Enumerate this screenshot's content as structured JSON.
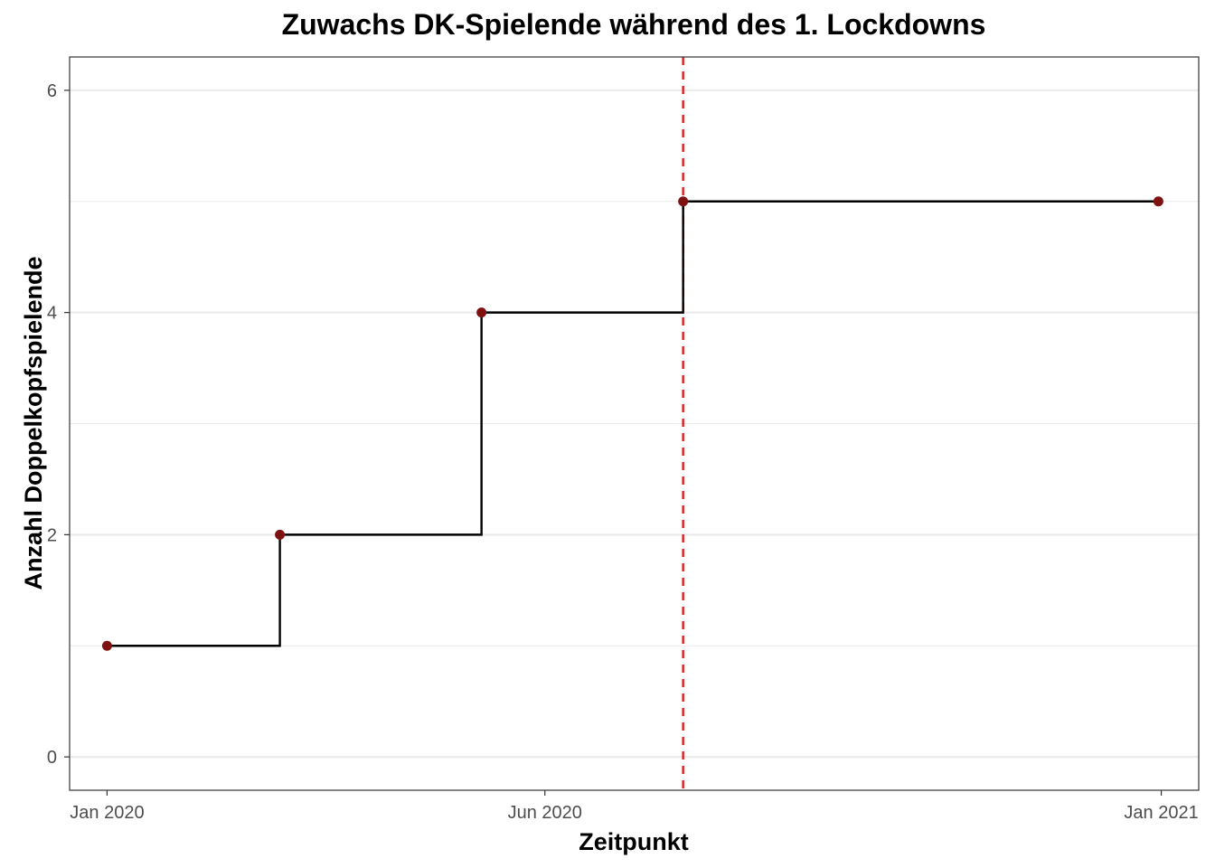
{
  "chart_data": {
    "type": "line",
    "step": "hv",
    "title": "Zuwachs DK-Spielende während des 1. Lockdowns",
    "xlabel": "Zeitpunkt",
    "ylabel": "Anzahl Doppelkopfspielende",
    "x": [
      "2020-01-01",
      "2020-03-01",
      "2020-05-10",
      "2020-07-19",
      "2020-12-31"
    ],
    "series": [
      {
        "values": [
          1,
          2,
          4,
          5,
          5
        ]
      }
    ],
    "reference_line": {
      "orientation": "vertical",
      "x": "2020-07-19",
      "style": "dashed",
      "color": "#e41a1c"
    },
    "xlim": [
      "2019-12-19",
      "2021-01-14"
    ],
    "ylim": [
      -0.3,
      6.3
    ],
    "x_ticks": [
      {
        "value": "2020-01-01",
        "label": "Jan 2020"
      },
      {
        "value": "2020-06-01",
        "label": "Jun 2020"
      },
      {
        "value": "2021-01-01",
        "label": "Jan 2021"
      }
    ],
    "y_ticks": [
      0,
      2,
      4,
      6
    ],
    "y_minor_ticks": [
      1,
      3,
      5
    ],
    "grid": true,
    "legend": "none",
    "colors": {
      "line": "#000000",
      "point": "#7f1111",
      "grid": "#ebebeb",
      "panel_border": "#333333",
      "tick_label": "#4d4d4d"
    }
  }
}
